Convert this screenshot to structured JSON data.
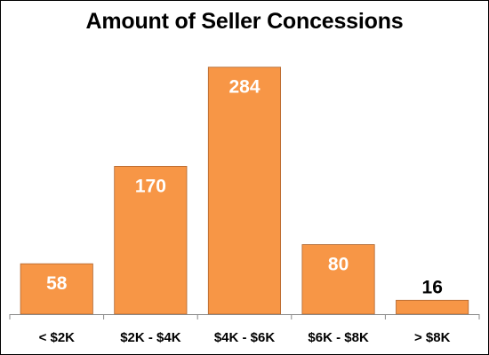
{
  "chart_data": {
    "type": "bar",
    "title": "Amount of Seller Concessions",
    "xlabel": "",
    "ylabel": "",
    "categories": [
      "< $2K",
      "$2K - $4K",
      "$4K - $6K",
      "$6K - $8K",
      "> $8K"
    ],
    "values": [
      58,
      170,
      284,
      80,
      16
    ],
    "ylim": [
      0,
      300
    ],
    "grid": false,
    "legend": "none",
    "data_labels": [
      "58",
      "170",
      "284",
      "80",
      "16"
    ],
    "colors": {
      "bar_fill": "#F79646",
      "bar_stroke": "#B0652E",
      "label_inside": "#FFFFFF",
      "label_outside": "#000000",
      "axis": "#888888"
    }
  }
}
